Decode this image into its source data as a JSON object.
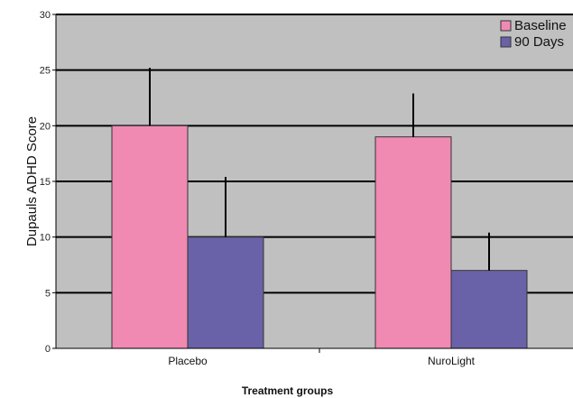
{
  "chart_data": {
    "type": "bar",
    "categories": [
      "Placebo",
      "NuroLight"
    ],
    "series": [
      {
        "name": "Baseline",
        "values": [
          20,
          19
        ],
        "error": [
          5.2,
          3.9
        ],
        "color": "#f08ab3"
      },
      {
        "name": "90 Days",
        "values": [
          10,
          7
        ],
        "error": [
          5.4,
          3.4
        ],
        "color": "#6a62a8"
      }
    ],
    "ylabel": "Dupauls ADHD Score",
    "xlabel": "Treatment groups",
    "ylim": [
      0,
      30
    ],
    "yticks": [
      0,
      5,
      10,
      15,
      20,
      25,
      30
    ],
    "grid": true,
    "legend_position": "top-right",
    "plot_background": "#c0c0c0"
  }
}
